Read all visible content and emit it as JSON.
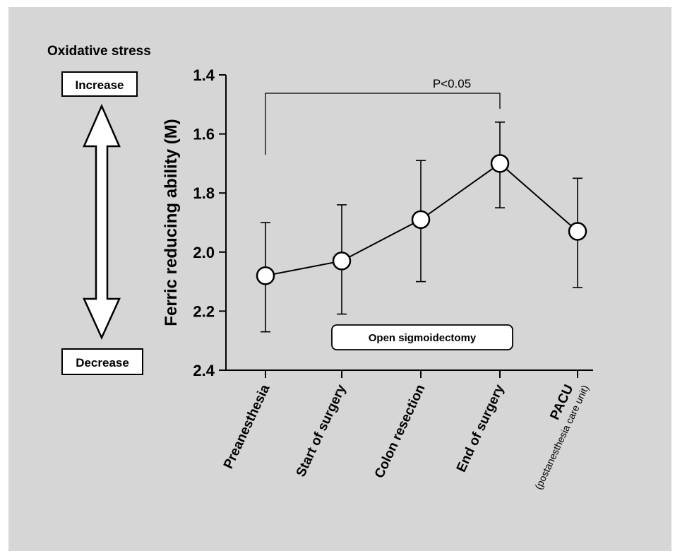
{
  "side_panel": {
    "title": "Oxidative stress",
    "increase_label": "Increase",
    "decrease_label": "Decrease"
  },
  "annotations": {
    "significance": "P<0.05",
    "procedure": "Open sigmoidectomy"
  },
  "chart_data": {
    "type": "line",
    "title": "",
    "xlabel": "",
    "ylabel": "Ferric reducing ability (M)",
    "categories": [
      "Preanesthesia",
      "Start of surgery",
      "Colon resection",
      "End of surgery",
      "PACU"
    ],
    "category_sublabels": [
      "",
      "",
      "",
      "",
      "(postanesthesia care unit)"
    ],
    "ylim": [
      2.4,
      1.4
    ],
    "y_inverted": true,
    "yticks": [
      "1.4",
      "1.6",
      "1.8",
      "2.0",
      "2.2",
      "2.4"
    ],
    "series": [
      {
        "values": [
          2.08,
          2.03,
          1.89,
          1.7,
          1.93
        ],
        "error_low": [
          2.27,
          2.21,
          2.1,
          1.85,
          2.12
        ],
        "error_high": [
          1.9,
          1.84,
          1.69,
          1.56,
          1.75
        ]
      }
    ],
    "grid": false,
    "marker": "open-circle",
    "colors": {
      "line": "#000000",
      "marker_fill": "#ffffff",
      "background": "#d6d6d6"
    }
  }
}
